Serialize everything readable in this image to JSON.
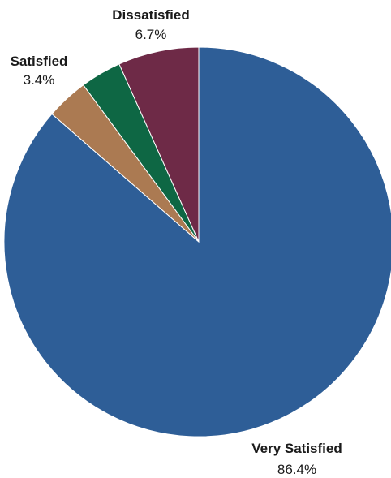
{
  "chart_data": {
    "type": "pie",
    "title": "",
    "start_angle_deg": 0,
    "direction": "clockwise",
    "slices": [
      {
        "label": "Very Satisfied",
        "value": 86.4,
        "display": "86.4%",
        "color": "#2E5E97"
      },
      {
        "label": "",
        "value": 3.5,
        "display": "",
        "color": "#AB7A52"
      },
      {
        "label": "Satisfied",
        "value": 3.4,
        "display": "3.4%",
        "color": "#0E6744"
      },
      {
        "label": "Dissatisfied",
        "value": 6.7,
        "display": "6.7%",
        "color": "#6E2A47"
      }
    ]
  }
}
